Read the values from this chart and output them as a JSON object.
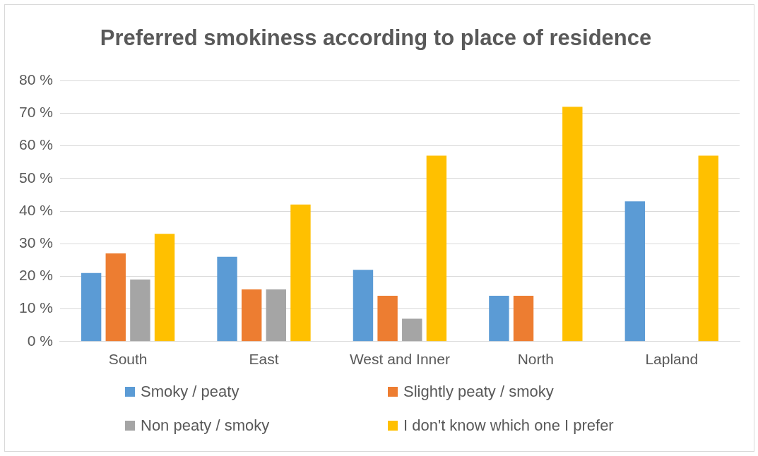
{
  "chart_data": {
    "type": "bar",
    "title": "Preferred smokiness according to place of residence",
    "categories": [
      "South",
      "East",
      "West and Inner",
      "North",
      "Lapland"
    ],
    "series": [
      {
        "name": "Smoky / peaty",
        "color": "#5b9bd5",
        "values": [
          21,
          26,
          22,
          14,
          43
        ]
      },
      {
        "name": "Slightly peaty / smoky",
        "color": "#ed7d31",
        "values": [
          27,
          16,
          14,
          14,
          0
        ]
      },
      {
        "name": "Non peaty / smoky",
        "color": "#a5a5a5",
        "values": [
          19,
          16,
          7,
          0,
          0
        ]
      },
      {
        "name": "I don't know which one I prefer",
        "color": "#ffc000",
        "values": [
          33,
          42,
          57,
          72,
          57
        ]
      }
    ],
    "ylim": [
      0,
      80
    ],
    "yticks": [
      {
        "value": 0,
        "label": "0 %"
      },
      {
        "value": 10,
        "label": "10 %"
      },
      {
        "value": 20,
        "label": "20 %"
      },
      {
        "value": 30,
        "label": "30 %"
      },
      {
        "value": 40,
        "label": "40 %"
      },
      {
        "value": 50,
        "label": "50 %"
      },
      {
        "value": 60,
        "label": "60 %"
      },
      {
        "value": 70,
        "label": "70 %"
      },
      {
        "value": 80,
        "label": "80 %"
      }
    ],
    "grid": "y",
    "legend": "bottom"
  }
}
